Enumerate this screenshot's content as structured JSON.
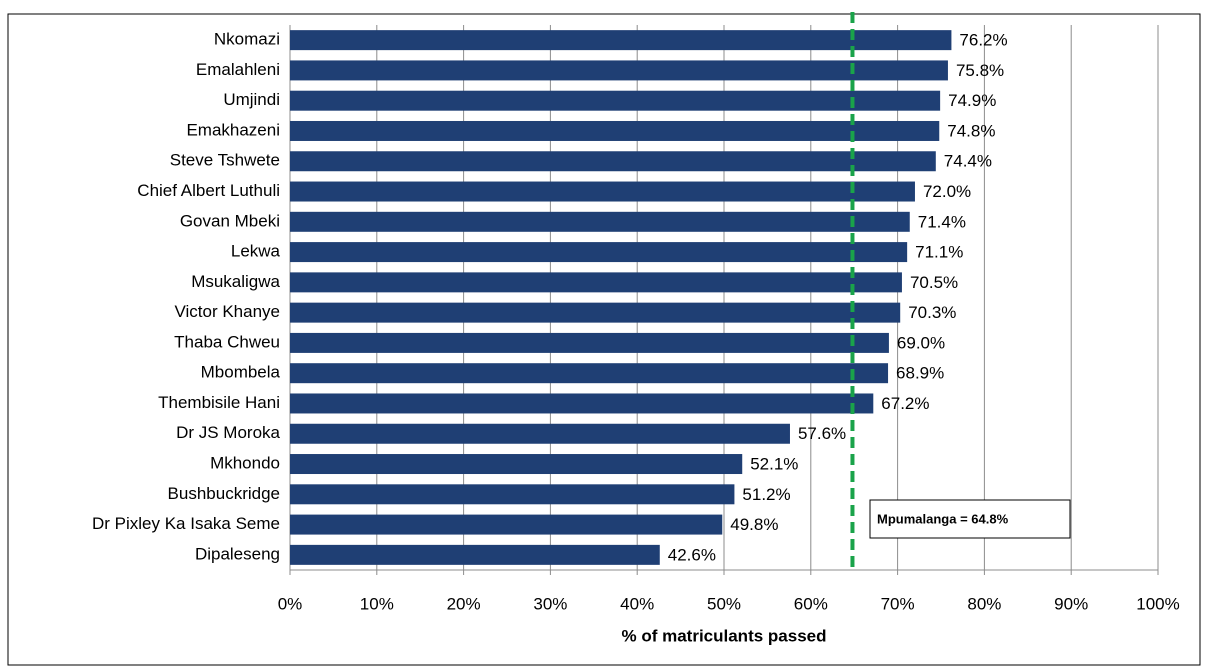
{
  "chart_data": {
    "type": "hbar",
    "categories": [
      "Nkomazi",
      "Emalahleni",
      "Umjindi",
      "Emakhazeni",
      "Steve Tshwete",
      "Chief Albert Luthuli",
      "Govan Mbeki",
      "Lekwa",
      "Msukaligwa",
      "Victor Khanye",
      "Thaba Chweu",
      "Mbombela",
      "Thembisile Hani",
      "Dr JS Moroka",
      "Mkhondo",
      "Bushbuckridge",
      "Dr Pixley Ka Isaka Seme",
      "Dipaleseng"
    ],
    "values": [
      76.2,
      75.8,
      74.9,
      74.8,
      74.4,
      72.0,
      71.4,
      71.1,
      70.5,
      70.3,
      69.0,
      68.9,
      67.2,
      57.6,
      52.1,
      51.2,
      49.8,
      42.6
    ],
    "value_labels": [
      "76.2%",
      "75.8%",
      "74.9%",
      "74.8%",
      "74.4%",
      "72.0%",
      "71.4%",
      "71.1%",
      "70.5%",
      "70.3%",
      "69.0%",
      "68.9%",
      "67.2%",
      "57.6%",
      "52.1%",
      "51.2%",
      "49.8%",
      "42.6%"
    ],
    "color": "#1f3f74",
    "x_label": "% of matriculants passed",
    "xlim": [
      0,
      100
    ],
    "xticks": [
      {
        "value": 0,
        "label": "0%"
      },
      {
        "value": 10,
        "label": "10%"
      },
      {
        "value": 20,
        "label": "20%"
      },
      {
        "value": 30,
        "label": "30%"
      },
      {
        "value": 40,
        "label": "40%"
      },
      {
        "value": 50,
        "label": "50%"
      },
      {
        "value": 60,
        "label": "60%"
      },
      {
        "value": 70,
        "label": "70%"
      },
      {
        "value": 80,
        "label": "80%"
      },
      {
        "value": 90,
        "label": "90%"
      },
      {
        "value": 100,
        "label": "100%"
      }
    ],
    "grid": true,
    "reference_line": {
      "value": 64.8,
      "label": "Mpumalanga = 64.8%",
      "color": "#1aa34a"
    }
  }
}
